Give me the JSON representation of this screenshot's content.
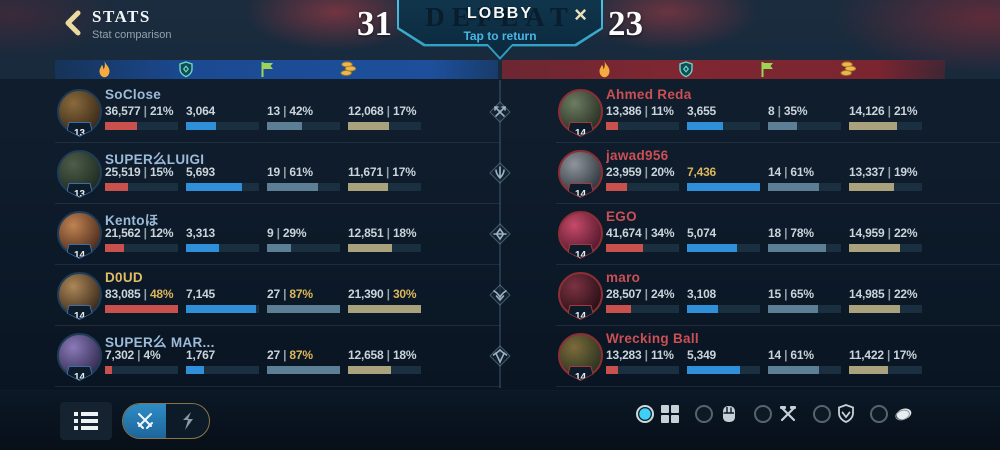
{
  "header": {
    "title": "STATS",
    "subtitle": "Stat comparison",
    "score_blue": "31",
    "score_red": "23",
    "banner_title": "LOBBY",
    "banner_subtitle": "Tap to return",
    "banner_background_text": "DEFEAT",
    "close_label": "×"
  },
  "columns": [
    "damage-flame-icon",
    "objectives-shield-icon",
    "participation-flag-icon",
    "gold-coins-icon"
  ],
  "roles": [
    "baron-lane",
    "jungle",
    "mid-lane",
    "dragon-lane",
    "support"
  ],
  "colors": {
    "bar_red": "#c8504d",
    "bar_blue": "#2f8fd8",
    "bar_slate": "#5d7f96",
    "bar_khaki": "#a9a27c",
    "gold_highlight": "#dcb65c",
    "blue_name": "#9cbbd8",
    "red_name": "#cb4f55",
    "self_name": "#e2bd66"
  },
  "bar_color_keys": [
    "red",
    "blue",
    "slate",
    "khaki"
  ],
  "teams": [
    {
      "side": "blue",
      "players": [
        {
          "name": "SoClose",
          "level": "13",
          "self": false,
          "avatar_colors": [
            "#8a6a3c",
            "#3a2a18"
          ],
          "stats": [
            {
              "value": "36,577",
              "pct": "21%",
              "fill": 44
            },
            {
              "value": "3,064",
              "fill": 41
            },
            {
              "value": "13",
              "pct": "42%",
              "fill": 48
            },
            {
              "value": "12,068",
              "pct": "17%",
              "fill": 56
            }
          ]
        },
        {
          "name": "SUPER么LUIGI",
          "level": "13",
          "self": false,
          "avatar_colors": [
            "#4e5e4a",
            "#1e2a20"
          ],
          "stats": [
            {
              "value": "25,519",
              "pct": "15%",
              "fill": 31
            },
            {
              "value": "5,693",
              "fill": 77
            },
            {
              "value": "19",
              "pct": "61%",
              "fill": 70
            },
            {
              "value": "11,671",
              "pct": "17%",
              "fill": 55
            }
          ]
        },
        {
          "name": "Kentoほ",
          "level": "14",
          "self": false,
          "avatar_colors": [
            "#c08352",
            "#4e2c1c"
          ],
          "stats": [
            {
              "value": "21,562",
              "pct": "12%",
              "fill": 26
            },
            {
              "value": "3,313",
              "fill": 45
            },
            {
              "value": "9",
              "pct": "29%",
              "fill": 33
            },
            {
              "value": "12,851",
              "pct": "18%",
              "fill": 60
            }
          ]
        },
        {
          "name": "D0UD",
          "level": "14",
          "self": true,
          "avatar_colors": [
            "#ad8758",
            "#3a2a1a"
          ],
          "stats": [
            {
              "value": "83,085",
              "pct": "48%",
              "pct_gold": true,
              "fill": 100
            },
            {
              "value": "7,145",
              "fill": 96
            },
            {
              "value": "27",
              "pct": "87%",
              "pct_gold": true,
              "fill": 100
            },
            {
              "value": "21,390",
              "pct": "30%",
              "pct_gold": true,
              "fill": 100
            }
          ]
        },
        {
          "name": "SUPER么 MAR...",
          "level": "14",
          "self": false,
          "avatar_colors": [
            "#8a7ab8",
            "#342b52"
          ],
          "stats": [
            {
              "value": "7,302",
              "pct": "4%",
              "fill": 9
            },
            {
              "value": "1,767",
              "fill": 24
            },
            {
              "value": "27",
              "pct": "87%",
              "pct_gold": true,
              "fill": 100
            },
            {
              "value": "12,658",
              "pct": "18%",
              "fill": 59
            }
          ]
        }
      ]
    },
    {
      "side": "red",
      "players": [
        {
          "name": "Ahmed Reda",
          "level": "14",
          "self": false,
          "avatar_colors": [
            "#6d7c62",
            "#282f22"
          ],
          "stats": [
            {
              "value": "13,386",
              "pct": "11%",
              "fill": 16
            },
            {
              "value": "3,655",
              "fill": 49
            },
            {
              "value": "8",
              "pct": "35%",
              "fill": 40
            },
            {
              "value": "14,126",
              "pct": "21%",
              "fill": 66
            }
          ]
        },
        {
          "name": "jawad956",
          "level": "14",
          "self": false,
          "avatar_colors": [
            "#8e959d",
            "#30363e"
          ],
          "stats": [
            {
              "value": "23,959",
              "pct": "20%",
              "fill": 29
            },
            {
              "value": "7,436",
              "value_gold": true,
              "fill": 100
            },
            {
              "value": "14",
              "pct": "61%",
              "fill": 70
            },
            {
              "value": "13,337",
              "pct": "19%",
              "fill": 62
            }
          ]
        },
        {
          "name": "EGO",
          "level": "14",
          "self": false,
          "avatar_colors": [
            "#c64a68",
            "#54182e"
          ],
          "stats": [
            {
              "value": "41,674",
              "pct": "34%",
              "fill": 50
            },
            {
              "value": "5,074",
              "fill": 68
            },
            {
              "value": "18",
              "pct": "78%",
              "fill": 80
            },
            {
              "value": "14,959",
              "pct": "22%",
              "fill": 70
            }
          ]
        },
        {
          "name": "maro",
          "level": "14",
          "self": false,
          "avatar_colors": [
            "#7c3242",
            "#280f16"
          ],
          "stats": [
            {
              "value": "28,507",
              "pct": "24%",
              "fill": 34
            },
            {
              "value": "3,108",
              "fill": 42
            },
            {
              "value": "15",
              "pct": "65%",
              "fill": 68
            },
            {
              "value": "14,985",
              "pct": "22%",
              "fill": 70
            }
          ]
        },
        {
          "name": "Wrecking Ball",
          "level": "14",
          "self": false,
          "avatar_colors": [
            "#7c6b3a",
            "#2a3220"
          ],
          "stats": [
            {
              "value": "13,283",
              "pct": "11%",
              "fill": 16
            },
            {
              "value": "5,349",
              "fill": 72
            },
            {
              "value": "14",
              "pct": "61%",
              "fill": 70
            },
            {
              "value": "11,422",
              "pct": "17%",
              "fill": 53
            }
          ]
        }
      ]
    }
  ],
  "toolbar": {
    "list_button_icon": "list-icon",
    "toggle": [
      {
        "icon": "crossed-swords-icon",
        "selected": true
      },
      {
        "icon": "rune-icon",
        "selected": false
      }
    ],
    "filters": [
      {
        "icon": "grid-icon",
        "selected": true
      },
      {
        "icon": "fist-icon",
        "selected": false
      },
      {
        "icon": "crossed-hammers-icon",
        "selected": false
      },
      {
        "icon": "shield-check-icon",
        "selected": false
      },
      {
        "icon": "coin-icon",
        "selected": false
      }
    ]
  }
}
